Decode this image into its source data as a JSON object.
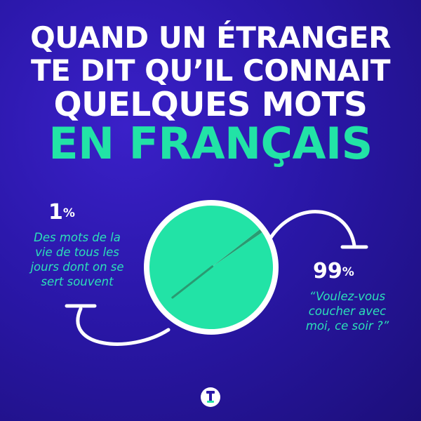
{
  "title": {
    "line1": "QUAND UN ÉTRANGER",
    "line2": "TE DIT QU’IL CONNAIT",
    "line3": "QUELQUES MOTS",
    "line4": "EN FRANÇAIS"
  },
  "colors": {
    "accent": "#22e3a6",
    "background": "#2a17a8",
    "small_slice": "#2a9a72"
  },
  "chart_data": {
    "type": "pie",
    "slices": [
      {
        "value": 1,
        "value_label": "1",
        "unit": "%",
        "label": "Des mots de la vie de tous les jours dont on se sert souvent"
      },
      {
        "value": 99,
        "value_label": "99",
        "unit": "%",
        "label": "“Voulez-vous coucher avec moi, ce soir ?”"
      }
    ]
  },
  "labels": {
    "left_lines": [
      "Des mots de la",
      "vie de tous les",
      "jours dont on se",
      "sert souvent"
    ],
    "right_lines": [
      "“Voulez-vous",
      "coucher avec",
      "moi, ce soir ?”"
    ]
  },
  "logo_icon": "brand-logo-icon"
}
